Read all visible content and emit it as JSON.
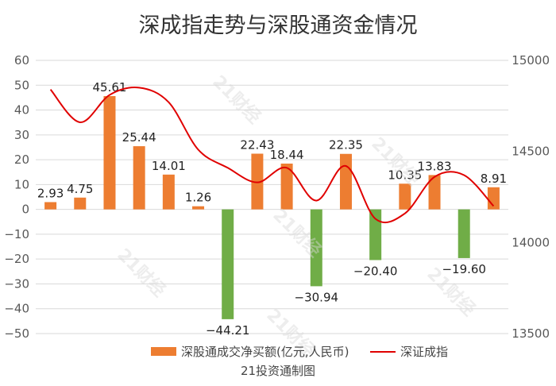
{
  "page": {
    "title": "深成指走势与深股通资金情况",
    "caption": "21投资通制图",
    "watermark": "21财经"
  },
  "chart_data": {
    "type": "bar",
    "title": "深成指走势与深股通资金情况",
    "y_left": {
      "min": -50,
      "max": 60,
      "step": 10
    },
    "y_right": {
      "min": 13500,
      "max": 15000,
      "step": 500
    },
    "grid": true,
    "legend_position": "bottom",
    "series": [
      {
        "name": "深股通成交净买额(亿元,人民币)",
        "type": "bar",
        "axis": "left",
        "values": [
          2.93,
          4.75,
          45.61,
          25.44,
          14.01,
          1.26,
          -44.21,
          22.43,
          18.44,
          -30.94,
          22.35,
          -20.4,
          10.35,
          13.83,
          -19.6,
          8.91
        ],
        "labels": [
          "2.93",
          "4.75",
          "45.61",
          "25.44",
          "14.01",
          "1.26",
          "−44.21",
          "22.43",
          "18.44",
          "−30.94",
          "22.35",
          "−20.40",
          "10.35",
          "13.83",
          "−19.60",
          "8.91"
        ],
        "positive_color": "#ed7d31",
        "negative_color": "#70ad47"
      },
      {
        "name": "深证成指",
        "type": "line",
        "axis": "right",
        "values": [
          14840,
          14660,
          14810,
          14850,
          14770,
          14510,
          14410,
          14330,
          14410,
          14230,
          14420,
          14130,
          14160,
          14360,
          14370,
          14200
        ],
        "color": "#e00000"
      }
    ]
  },
  "colors": {
    "grid": "#d9d9d9",
    "axis_text": "#595959",
    "label_text": "#222222"
  }
}
